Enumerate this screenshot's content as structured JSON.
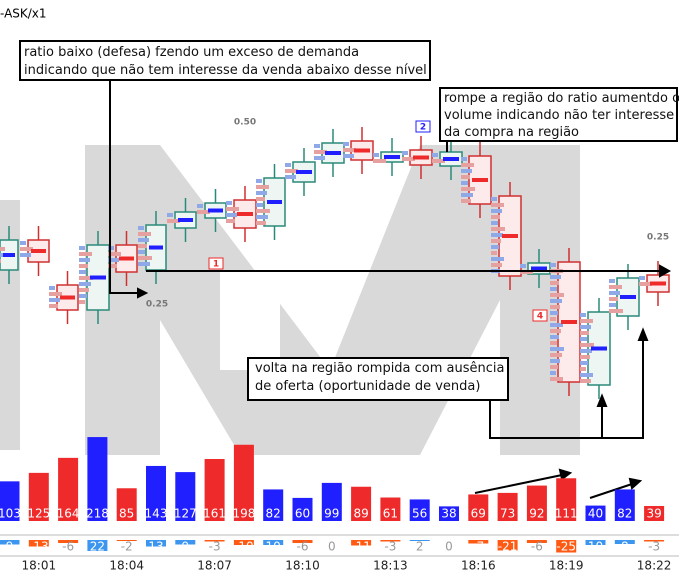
{
  "header": {
    "title": "-ASK/x1"
  },
  "annotations": [
    {
      "lines": [
        "ratio baixo (defesa) fzendo um exceso de demanda",
        "indicando que não tem interesse da venda abaixo desse nível"
      ]
    },
    {
      "lines": [
        "rompe a região do ratio aumentdo o",
        "volume indicando não ter interesse",
        "da compra na região"
      ]
    },
    {
      "lines": [
        "volta na região rompida com ausência",
        "de oferta (oportunidade de venda)"
      ]
    }
  ],
  "markers": [
    "0.50",
    "0.25",
    "0.25",
    "2",
    "1",
    "4"
  ],
  "chart_data": {
    "type": "bar",
    "categories": [
      null,
      "18:01",
      null,
      null,
      "18:04",
      null,
      null,
      "18:07",
      null,
      null,
      "18:10",
      null,
      null,
      "18:13",
      null,
      null,
      "18:16",
      null,
      null,
      "18:19",
      null,
      null,
      "18:22"
    ],
    "values": [
      103,
      125,
      164,
      218,
      85,
      143,
      127,
      161,
      198,
      82,
      60,
      99,
      89,
      61,
      56,
      38,
      69,
      73,
      92,
      111,
      40,
      82,
      39
    ],
    "colors": [
      "#1f1fff",
      "#ee2a2a",
      "#ee2a2a",
      "#1f1fff",
      "#ee2a2a",
      "#1f1fff",
      "#1f1fff",
      "#ee2a2a",
      "#ee2a2a",
      "#1f1fff",
      "#1f1fff",
      "#1f1fff",
      "#ee2a2a",
      "#ee2a2a",
      "#1f1fff",
      "#1f1fff",
      "#ee2a2a",
      "#ee2a2a",
      "#ee2a2a",
      "#ee2a2a",
      "#1f1fff",
      "#1f1fff",
      "#ee2a2a"
    ],
    "delta": {
      "values": [
        9,
        -13,
        -6,
        22,
        -2,
        13,
        9,
        -3,
        -10,
        10,
        -6,
        0,
        -11,
        -3,
        2,
        0,
        -7,
        -21,
        -6,
        -25,
        10,
        8,
        -3
      ],
      "positive_color": "#3c96f0",
      "negative_color": "#ff5a14"
    }
  }
}
